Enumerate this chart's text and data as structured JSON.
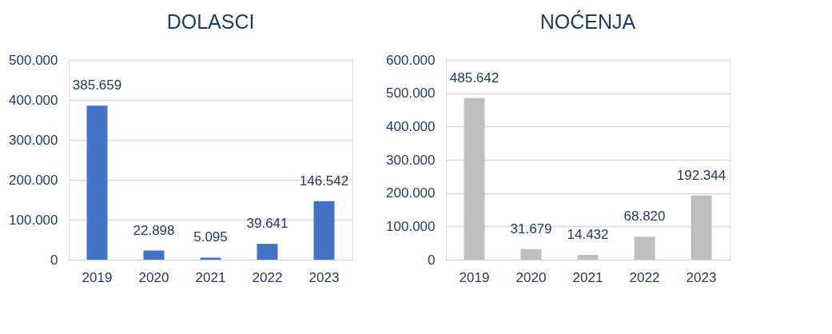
{
  "chart_data": [
    {
      "type": "bar",
      "title": "DOLASCI",
      "categories": [
        "2019",
        "2020",
        "2021",
        "2022",
        "2023"
      ],
      "series": [
        {
          "color": "#4472c4",
          "values": [
            385659,
            22898,
            5095,
            39641,
            146542
          ],
          "value_labels": [
            "385.659",
            "22.898",
            "5.095",
            "39.641",
            "146.542"
          ]
        }
      ],
      "ylim": [
        0,
        500000
      ],
      "yticks": [
        {
          "value": 0,
          "label": "0"
        },
        {
          "value": 100000,
          "label": "100.000"
        },
        {
          "value": 200000,
          "label": "200.000"
        },
        {
          "value": 300000,
          "label": "300.000"
        },
        {
          "value": 400000,
          "label": "400.000"
        },
        {
          "value": 500000,
          "label": "500.000"
        }
      ],
      "grid": "y"
    },
    {
      "type": "bar",
      "title": "NOĆENJA",
      "categories": [
        "2019",
        "2020",
        "2021",
        "2022",
        "2023"
      ],
      "series": [
        {
          "color": "#bfbfbf",
          "values": [
            485642,
            31679,
            14432,
            68820,
            192344
          ],
          "value_labels": [
            "485.642",
            "31.679",
            "14.432",
            "68.820",
            "192.344"
          ]
        }
      ],
      "ylim": [
        0,
        600000
      ],
      "yticks": [
        {
          "value": 0,
          "label": "0"
        },
        {
          "value": 100000,
          "label": "100.000"
        },
        {
          "value": 200000,
          "label": "200.000"
        },
        {
          "value": 300000,
          "label": "300.000"
        },
        {
          "value": 400000,
          "label": "400.000"
        },
        {
          "value": 500000,
          "label": "500.000"
        },
        {
          "value": 600000,
          "label": "600.000"
        }
      ],
      "grid": "y"
    }
  ]
}
